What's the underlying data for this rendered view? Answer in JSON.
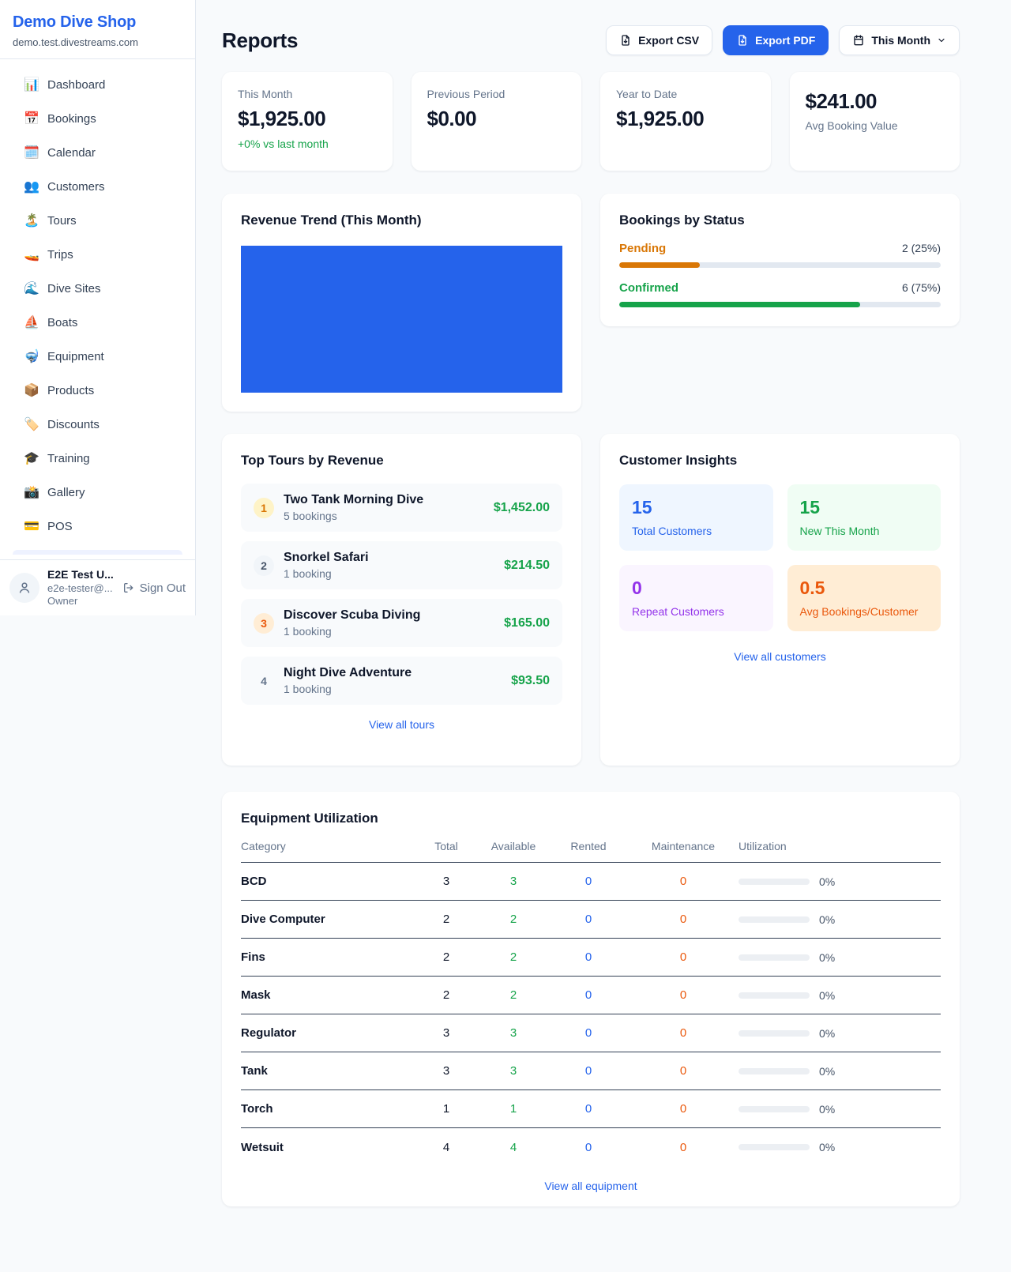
{
  "sidebar": {
    "brand": {
      "name": "Demo Dive Shop",
      "domain": "demo.test.divestreams.com"
    },
    "nav": [
      {
        "label": "Dashboard",
        "icon": "📊",
        "icon_name": "dashboard-icon",
        "item_name": "sidebar-item-dashboard"
      },
      {
        "label": "Bookings",
        "icon": "📅",
        "icon_name": "bookings-icon",
        "item_name": "sidebar-item-bookings"
      },
      {
        "label": "Calendar",
        "icon": "🗓️",
        "icon_name": "calendar-icon",
        "item_name": "sidebar-item-calendar"
      },
      {
        "label": "Customers",
        "icon": "👥",
        "icon_name": "customers-icon",
        "item_name": "sidebar-item-customers"
      },
      {
        "label": "Tours",
        "icon": "🏝️",
        "icon_name": "tours-icon",
        "item_name": "sidebar-item-tours"
      },
      {
        "label": "Trips",
        "icon": "🚤",
        "icon_name": "trips-icon",
        "item_name": "sidebar-item-trips"
      },
      {
        "label": "Dive Sites",
        "icon": "🌊",
        "icon_name": "dive-sites-icon",
        "item_name": "sidebar-item-dive-sites"
      },
      {
        "label": "Boats",
        "icon": "⛵",
        "icon_name": "boats-icon",
        "item_name": "sidebar-item-boats"
      },
      {
        "label": "Equipment",
        "icon": "🤿",
        "icon_name": "equipment-icon",
        "item_name": "sidebar-item-equipment"
      },
      {
        "label": "Products",
        "icon": "📦",
        "icon_name": "products-icon",
        "item_name": "sidebar-item-products"
      },
      {
        "label": "Discounts",
        "icon": "🏷️",
        "icon_name": "discounts-icon",
        "item_name": "sidebar-item-discounts"
      },
      {
        "label": "Training",
        "icon": "🎓",
        "icon_name": "training-icon",
        "item_name": "sidebar-item-training"
      },
      {
        "label": "Gallery",
        "icon": "📸",
        "icon_name": "gallery-icon",
        "item_name": "sidebar-item-gallery"
      },
      {
        "label": "POS",
        "icon": "💳",
        "icon_name": "pos-icon",
        "item_name": "sidebar-item-pos"
      }
    ],
    "user": {
      "name": "E2E Test U...",
      "email": "e2e-tester@...",
      "role": "Owner",
      "sign_out": "Sign Out"
    }
  },
  "header": {
    "title": "Reports",
    "export_csv": "Export CSV",
    "export_pdf": "Export PDF",
    "period": "This Month"
  },
  "stats": {
    "this_month": {
      "label": "This Month",
      "value": "$1,925.00",
      "delta": "+0% vs last month"
    },
    "previous_period": {
      "label": "Previous Period",
      "value": "$0.00"
    },
    "year_to_date": {
      "label": "Year to Date",
      "value": "$1,925.00"
    },
    "avg_booking": {
      "value": "$241.00",
      "label": "Avg Booking Value"
    }
  },
  "revenue_trend": {
    "title": "Revenue Trend (This Month)",
    "bar_color": "#2563eb",
    "chart_data": {
      "type": "bar",
      "title": "Revenue Trend (This Month)",
      "categories": [
        "This Month"
      ],
      "values": [
        1925
      ],
      "note": "single solid full-plot bar, no axes or labels visible"
    }
  },
  "bookings_by_status": {
    "title": "Bookings by Status",
    "rows": [
      {
        "label": "Pending",
        "count": "2 (25%)",
        "pct": 25,
        "color": "#d97706"
      },
      {
        "label": "Confirmed",
        "count": "6 (75%)",
        "pct": 75,
        "color": "#16a34a"
      }
    ]
  },
  "top_tours": {
    "title": "Top Tours by Revenue",
    "view_all": "View all tours",
    "items": [
      {
        "rank": "1",
        "name": "Two Tank Morning Dive",
        "bookings": "5 bookings",
        "revenue": "$1,452.00",
        "badge_bg": "#fef3c7",
        "badge_fg": "#d97706"
      },
      {
        "rank": "2",
        "name": "Snorkel Safari",
        "bookings": "1 booking",
        "revenue": "$214.50",
        "badge_bg": "#f1f5f9",
        "badge_fg": "#475569"
      },
      {
        "rank": "3",
        "name": "Discover Scuba Diving",
        "bookings": "1 booking",
        "revenue": "$165.00",
        "badge_bg": "#ffedd5",
        "badge_fg": "#ea580c"
      },
      {
        "rank": "4",
        "name": "Night Dive Adventure",
        "bookings": "1 booking",
        "revenue": "$93.50",
        "badge_bg": "transparent",
        "badge_fg": "#64748b"
      }
    ]
  },
  "customer_insights": {
    "title": "Customer Insights",
    "view_all": "View all customers",
    "tiles": [
      {
        "value": "15",
        "label": "Total Customers",
        "bg": "#eff6ff",
        "fg": "#2563eb"
      },
      {
        "value": "15",
        "label": "New This Month",
        "bg": "#f0fdf4",
        "fg": "#16a34a"
      },
      {
        "value": "0",
        "label": "Repeat Customers",
        "bg": "#faf5ff",
        "fg": "#9333ea"
      },
      {
        "value": "0.5",
        "label": "Avg Bookings/Customer",
        "bg": "#ffedd5",
        "fg": "#ea580c"
      }
    ]
  },
  "equipment": {
    "title": "Equipment Utilization",
    "view_all": "View all equipment",
    "columns": [
      "Category",
      "Total",
      "Available",
      "Rented",
      "Maintenance",
      "Utilization"
    ],
    "rows": [
      {
        "category": "BCD",
        "total": "3",
        "available": "3",
        "rented": "0",
        "maintenance": "0",
        "utilization": "0%",
        "util_pct": 0
      },
      {
        "category": "Dive Computer",
        "total": "2",
        "available": "2",
        "rented": "0",
        "maintenance": "0",
        "utilization": "0%",
        "util_pct": 0
      },
      {
        "category": "Fins",
        "total": "2",
        "available": "2",
        "rented": "0",
        "maintenance": "0",
        "utilization": "0%",
        "util_pct": 0
      },
      {
        "category": "Mask",
        "total": "2",
        "available": "2",
        "rented": "0",
        "maintenance": "0",
        "utilization": "0%",
        "util_pct": 0
      },
      {
        "category": "Regulator",
        "total": "3",
        "available": "3",
        "rented": "0",
        "maintenance": "0",
        "utilization": "0%",
        "util_pct": 0
      },
      {
        "category": "Tank",
        "total": "3",
        "available": "3",
        "rented": "0",
        "maintenance": "0",
        "utilization": "0%",
        "util_pct": 0
      },
      {
        "category": "Torch",
        "total": "1",
        "available": "1",
        "rented": "0",
        "maintenance": "0",
        "utilization": "0%",
        "util_pct": 0
      },
      {
        "category": "Wetsuit",
        "total": "4",
        "available": "4",
        "rented": "0",
        "maintenance": "0",
        "utilization": "0%",
        "util_pct": 0
      }
    ]
  }
}
